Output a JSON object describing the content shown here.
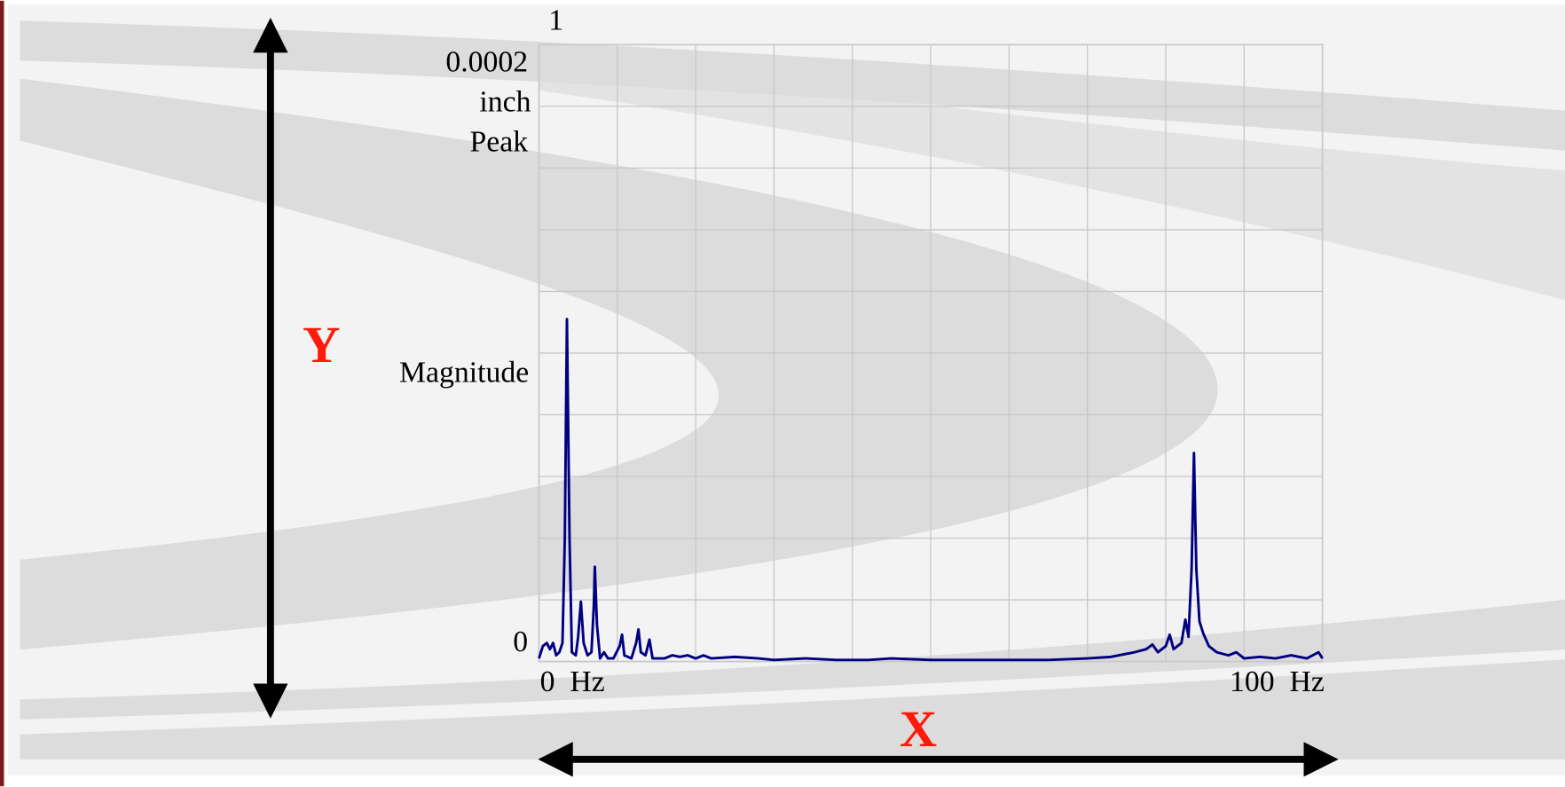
{
  "chart_data": {
    "type": "line",
    "annotation": "1",
    "y_label_unit": [
      "inch",
      "Peak"
    ],
    "y_label": "Magnitude",
    "y_arrow_label": "Y",
    "x_arrow_label": "X",
    "color": "#000080",
    "xlim": [
      0,
      100
    ],
    "ylim": [
      0,
      0.0002
    ],
    "xticks": [
      {
        "value": 0,
        "label": "0  Hz"
      },
      {
        "value": 100,
        "label": "100  Hz"
      }
    ],
    "yticks": [
      0,
      0.0002
    ],
    "grid": true,
    "xgrid": [
      0,
      10,
      20,
      30,
      40,
      50,
      60,
      70,
      80,
      90,
      100
    ],
    "ygrid": [
      0,
      2e-05,
      4e-05,
      6e-05,
      8e-05,
      0.0001,
      0.00012,
      0.00014,
      0.00016,
      0.00018,
      0.0002
    ],
    "x": [
      0,
      0.5,
      1.0,
      1.4,
      1.8,
      2.2,
      2.6,
      3.0,
      3.3,
      3.57,
      3.9,
      4.2,
      4.7,
      5.0,
      5.35,
      5.7,
      6.2,
      6.7,
      7.0,
      7.13,
      7.4,
      7.8,
      8.3,
      8.8,
      9.5,
      10.3,
      10.6,
      10.9,
      11.8,
      12.4,
      12.7,
      13.0,
      13.6,
      14.1,
      14.5,
      16,
      17,
      18,
      19,
      20,
      21,
      22,
      25,
      28,
      30,
      34,
      38,
      42,
      45,
      50,
      55,
      60,
      65,
      70,
      73,
      76,
      77.5,
      78.3,
      79,
      80,
      80.5,
      81,
      82,
      82.5,
      82.9,
      83.3,
      83.6,
      83.9,
      84.3,
      84.8,
      85.5,
      86.5,
      88,
      89,
      90,
      92,
      94,
      96,
      98,
      99.5,
      100
    ],
    "values": [
      1e-06,
      5e-06,
      6e-06,
      4e-06,
      6e-06,
      2e-06,
      3e-06,
      6e-06,
      4e-05,
      0.000111,
      4e-05,
      3e-06,
      2e-06,
      8e-06,
      1.94e-05,
      6e-06,
      2e-06,
      3e-06,
      1.8e-05,
      3.07e-05,
      1.2e-05,
      1e-06,
      3e-06,
      1e-06,
      1e-06,
      5e-06,
      8.7e-06,
      2e-06,
      1e-06,
      6e-06,
      1.04e-05,
      3e-06,
      2e-06,
      7.1e-06,
      1e-06,
      1e-06,
      2e-06,
      1.5e-06,
      2e-06,
      1e-06,
      2e-06,
      1e-06,
      1.5e-06,
      1e-06,
      5e-07,
      1e-06,
      5e-07,
      5e-07,
      1e-06,
      5e-07,
      5e-07,
      5e-07,
      5e-07,
      1e-06,
      1.5e-06,
      3e-06,
      4e-06,
      5.5e-06,
      3e-06,
      5e-06,
      8.7e-06,
      4e-06,
      6e-06,
      1.36e-05,
      8e-06,
      3e-05,
      6.76e-05,
      3e-05,
      1.3e-05,
      9e-06,
      5e-06,
      3e-06,
      2e-06,
      3e-06,
      1e-06,
      1.5e-06,
      1e-06,
      2e-06,
      1e-06,
      3e-06,
      1e-06
    ]
  }
}
